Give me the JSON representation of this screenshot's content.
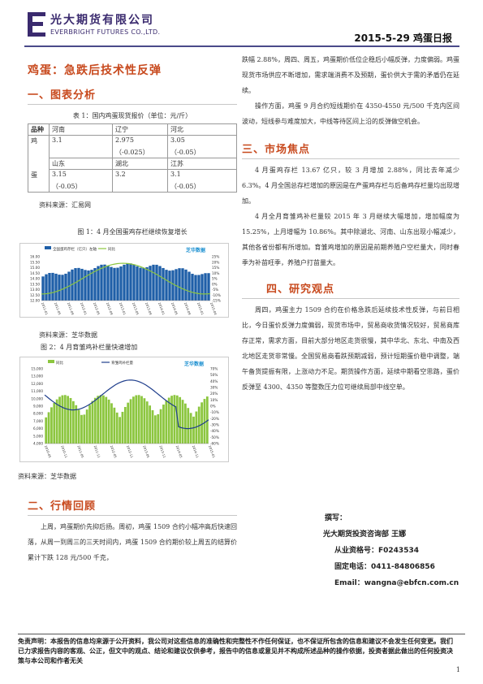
{
  "header": {
    "company_cn": "光大期货有限公司",
    "company_en": "EVERBRIGHT FUTURES CO.,LTD.",
    "report_title": "2015-5-29 鸡蛋日报"
  },
  "article": {
    "main_title": "鸡蛋：急跌后技术性反弹"
  },
  "section1": {
    "title": "一、图表分析",
    "table_caption": "表 1：国内鸡蛋现货报价（单位：元/斤）",
    "table": {
      "header": [
        "品种",
        "河南",
        "辽宁",
        "河北"
      ],
      "row_label_1": "鸡",
      "row_label_2": "蛋",
      "r1": [
        "3.1",
        "2.975",
        "3.05"
      ],
      "r1b": [
        "",
        "（-0.025）",
        "（-0.05）"
      ],
      "r2": [
        "山东",
        "湖北",
        "江苏"
      ],
      "r3": [
        "3.15",
        "3.2",
        "3.1"
      ],
      "r3b": [
        "（-0.05）",
        "",
        "（-0.05）"
      ]
    },
    "source1": "资料来源：汇易网",
    "fig1_caption": "图 1：4 月全国蛋鸡存栏继续恢复增长",
    "source2": "资料来源：芝华数据",
    "fig2_caption": "图 2：4 月育雏鸡补栏量快速增加",
    "source3": "资料来源：芝华数据"
  },
  "chart_data": [
    {
      "type": "bar",
      "legend": [
        "全国蛋鸡存栏（亿只）左轴",
        "同比"
      ],
      "logo_text": "芝华数据",
      "y_left_ticks": [
        "16.00",
        "15.50",
        "15.00",
        "14.50",
        "14.00",
        "13.50",
        "13.00",
        "12.50",
        "12.00"
      ],
      "y_right_ticks": [
        "25%",
        "20%",
        "15%",
        "10%",
        "5%",
        "0%",
        "-5%",
        "-10%",
        "-15%"
      ],
      "x_ticks": [
        "2011-01",
        "2011-05",
        "2011-09",
        "2012-01",
        "2012-05",
        "2012-09",
        "2013-01",
        "2013-05",
        "2013-09",
        "2014-01",
        "2014-05",
        "2014-09",
        "2015-01",
        "2015-04"
      ]
    },
    {
      "type": "bar",
      "legend": [
        "同比",
        "育雏鸡补栏量"
      ],
      "logo_text": "芝华数据",
      "y_left_ticks": [
        "15,000",
        "13,000",
        "12,000",
        "11,000",
        "10,000",
        "9,000",
        "8,000",
        "7,000",
        "6,000",
        "5,000",
        "4,000"
      ],
      "y_right_ticks": [
        "70%",
        "50%",
        "40%",
        "30%",
        "20%",
        "10%",
        "0%",
        "-10%",
        "-20%",
        "-30%",
        "-40%",
        "-50%",
        "-60%"
      ],
      "x_ticks": [
        "2010-05",
        "2010-11",
        "2011-05",
        "2011-11",
        "2012-05",
        "2012-11",
        "2013-05",
        "2013-11",
        "2014-05",
        "2014-11",
        "2015-01"
      ]
    }
  ],
  "section2": {
    "title": "二、行情回顾",
    "para": "上周，鸡蛋期价先抑后扬。周初，鸡蛋 1509 合约小幅冲高后快速回落，从周一到周三的三天时间内，鸡蛋 1509 合约期价较上周五的结算价累计下跌 128 元/500 千克，"
  },
  "right_top_para": "跌幅 2.88%，周四、周五，鸡蛋期价低位企稳后小幅反弹，力度偏弱。鸡蛋现货市场供应不断增加，需求端消费不及预期，蛋价供大于需的矛盾仍在延续。",
  "right_top_para2": "操作方面，鸡蛋 9 月合约短线期价在 4350-4550 元/500 千克内区间波动，短线参与难度加大，中线等待区间上沿的反弹做空机会。",
  "section3": {
    "title": "三、市场焦点",
    "p1": "4 月蛋鸡存栏 13.67 亿只，较 3 月增加 2.88%，同比去年减少 6.3%。4 月全国总存栏增加的原因是在产蛋鸡存栏与后备鸡存栏量均出现增加。",
    "p2": "4 月全月育雏鸡补栏量较 2015 年 3 月继续大幅增加，增加幅度为 15.25%，上月增幅为 10.86%。其中除湖北、河南、山东出现小幅减少，其他各省份都有所增加。育雏鸡增加的原因是前期养殖户空栏量大，同时春季为补苗旺季，养殖户打苗量大。"
  },
  "section4": {
    "title": "四、研究观点",
    "p1": "周四，鸡蛋主力 1509 合约在价格急跌后延续技术性反弹，与前日相比，今日蛋价反弹力度偏弱，现货市场中，贸易商收货情况较好，贸易商库存正常，需求方面，目前大部分地区走货很慢，其中华北、东北、中南及西北地区走货非常慢。全国贸易商看跌预期减弱，预计短期蛋价稳中调整，端午备货提振有限，上涨动力不足。期货操作方面，延续中期看空思路，蛋价反弹至 4300、4350 等整数压力位可继续局部中线空单。"
  },
  "author": {
    "l1": "撰写：",
    "l2": "光大期货投资咨询部 王娜",
    "l3": "从业资格号：F0243534",
    "l4": "固定电话：0411-84806856",
    "l5": "Email：wangna@ebfcn.com.cn"
  },
  "disclaimer": "免责声明：本报告的信息均来源于公开资料，我公司对这些信息的准确性和完整性不作任何保证，也不保证所包含的信息和建议不会发生任何变更。我们已力求报告内容的客观、公正，但文中的观点、结论和建议仅供参考，报告中的信息或意见并不构成所述品种的操作依据，投资者据此做出的任何投资决策与本公司和作者无关",
  "page_number": "1"
}
